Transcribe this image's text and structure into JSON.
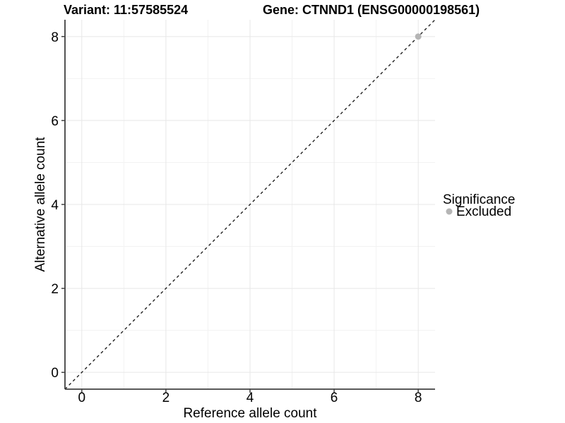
{
  "chart_data": {
    "type": "scatter",
    "title_left": "Variant: 11:57585524",
    "title_right": "Gene: CTNND1 (ENSG00000198561)",
    "xlabel": "Reference allele count",
    "ylabel": "Alternative allele count",
    "xlim": [
      -0.4,
      8.4
    ],
    "ylim": [
      -0.4,
      8.4
    ],
    "x_major_ticks": [
      0,
      2,
      4,
      6,
      8
    ],
    "y_major_ticks": [
      0,
      2,
      4,
      6,
      8
    ],
    "x_minor_ticks": [
      1,
      3,
      5,
      7
    ],
    "y_minor_ticks": [
      1,
      3,
      5,
      7
    ],
    "grid": "major and minor gridlines, white panel background",
    "legend": {
      "position": "right",
      "title": "Significance",
      "entries": [
        {
          "label": "Excluded",
          "color": "#b5b5b5"
        }
      ]
    },
    "series": [
      {
        "name": "Excluded",
        "color": "#b5b5b5",
        "points": [
          {
            "x": 8,
            "y": 8
          }
        ]
      }
    ],
    "reference_line": {
      "kind": "identity y = x across full panel",
      "style": "dashed",
      "color": "#111111"
    }
  },
  "colors": {
    "background": "#ffffff",
    "grid_major": "#e7e7e7",
    "grid_minor": "#f2f2f2",
    "axis_line": "#404040",
    "tick_mark": "#404040",
    "text": "#000000"
  }
}
